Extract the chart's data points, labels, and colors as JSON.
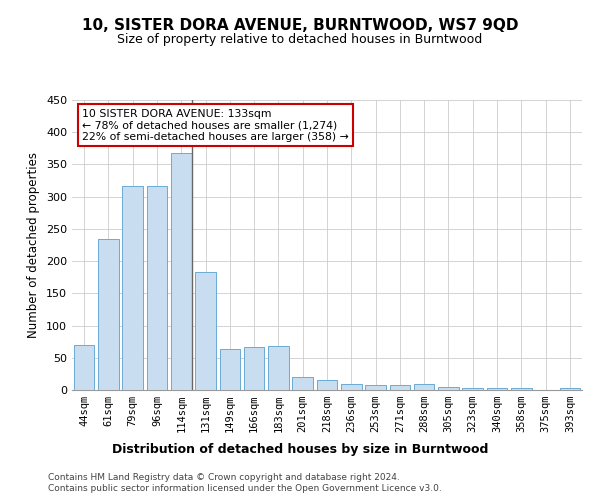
{
  "title": "10, SISTER DORA AVENUE, BURNTWOOD, WS7 9QD",
  "subtitle": "Size of property relative to detached houses in Burntwood",
  "xlabel": "Distribution of detached houses by size in Burntwood",
  "ylabel": "Number of detached properties",
  "categories": [
    "44sqm",
    "61sqm",
    "79sqm",
    "96sqm",
    "114sqm",
    "131sqm",
    "149sqm",
    "166sqm",
    "183sqm",
    "201sqm",
    "218sqm",
    "236sqm",
    "253sqm",
    "271sqm",
    "288sqm",
    "305sqm",
    "323sqm",
    "340sqm",
    "358sqm",
    "375sqm",
    "393sqm"
  ],
  "values": [
    70,
    235,
    317,
    317,
    368,
    183,
    63,
    67,
    68,
    20,
    15,
    10,
    7,
    8,
    9,
    5,
    3,
    3,
    3,
    0,
    3
  ],
  "bar_color": "#c9ddf0",
  "bar_edge_color": "#6aaad4",
  "property_line_index": 4,
  "ylim": [
    0,
    450
  ],
  "yticks": [
    0,
    50,
    100,
    150,
    200,
    250,
    300,
    350,
    400,
    450
  ],
  "annotation_text": "10 SISTER DORA AVENUE: 133sqm\n← 78% of detached houses are smaller (1,274)\n22% of semi-detached houses are larger (358) →",
  "annotation_box_color": "#ffffff",
  "annotation_border_color": "#cc0000",
  "footer_line1": "Contains HM Land Registry data © Crown copyright and database right 2024.",
  "footer_line2": "Contains public sector information licensed under the Open Government Licence v3.0.",
  "background_color": "#ffffff",
  "grid_color": "#cccccc"
}
